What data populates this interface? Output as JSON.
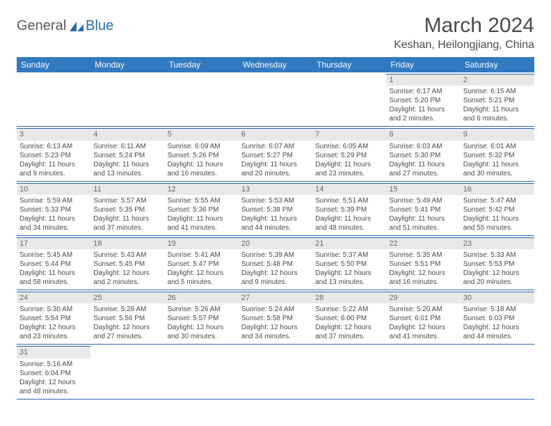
{
  "logo": {
    "general": "General",
    "blue": "Blue"
  },
  "title": "March 2024",
  "location": "Keshan, Heilongjiang, China",
  "headers": [
    "Sunday",
    "Monday",
    "Tuesday",
    "Wednesday",
    "Thursday",
    "Friday",
    "Saturday"
  ],
  "colors": {
    "header_bg": "#317ac1",
    "header_text": "#ffffff",
    "daynum_bg": "#e8e8e8",
    "daynum_text": "#6a6a6a",
    "border": "#2968b0",
    "body_text": "#4a4a4a",
    "logo_accent": "#2968b0",
    "logo_grey": "#5a5a5a"
  },
  "weeks": [
    [
      null,
      null,
      null,
      null,
      null,
      {
        "n": "1",
        "sr": "Sunrise: 6:17 AM",
        "ss": "Sunset: 5:20 PM",
        "dl1": "Daylight: 11 hours",
        "dl2": "and 2 minutes."
      },
      {
        "n": "2",
        "sr": "Sunrise: 6:15 AM",
        "ss": "Sunset: 5:21 PM",
        "dl1": "Daylight: 11 hours",
        "dl2": "and 6 minutes."
      }
    ],
    [
      {
        "n": "3",
        "sr": "Sunrise: 6:13 AM",
        "ss": "Sunset: 5:23 PM",
        "dl1": "Daylight: 11 hours",
        "dl2": "and 9 minutes."
      },
      {
        "n": "4",
        "sr": "Sunrise: 6:11 AM",
        "ss": "Sunset: 5:24 PM",
        "dl1": "Daylight: 11 hours",
        "dl2": "and 13 minutes."
      },
      {
        "n": "5",
        "sr": "Sunrise: 6:09 AM",
        "ss": "Sunset: 5:26 PM",
        "dl1": "Daylight: 11 hours",
        "dl2": "and 16 minutes."
      },
      {
        "n": "6",
        "sr": "Sunrise: 6:07 AM",
        "ss": "Sunset: 5:27 PM",
        "dl1": "Daylight: 11 hours",
        "dl2": "and 20 minutes."
      },
      {
        "n": "7",
        "sr": "Sunrise: 6:05 AM",
        "ss": "Sunset: 5:29 PM",
        "dl1": "Daylight: 11 hours",
        "dl2": "and 23 minutes."
      },
      {
        "n": "8",
        "sr": "Sunrise: 6:03 AM",
        "ss": "Sunset: 5:30 PM",
        "dl1": "Daylight: 11 hours",
        "dl2": "and 27 minutes."
      },
      {
        "n": "9",
        "sr": "Sunrise: 6:01 AM",
        "ss": "Sunset: 5:32 PM",
        "dl1": "Daylight: 11 hours",
        "dl2": "and 30 minutes."
      }
    ],
    [
      {
        "n": "10",
        "sr": "Sunrise: 5:59 AM",
        "ss": "Sunset: 5:33 PM",
        "dl1": "Daylight: 11 hours",
        "dl2": "and 34 minutes."
      },
      {
        "n": "11",
        "sr": "Sunrise: 5:57 AM",
        "ss": "Sunset: 5:35 PM",
        "dl1": "Daylight: 11 hours",
        "dl2": "and 37 minutes."
      },
      {
        "n": "12",
        "sr": "Sunrise: 5:55 AM",
        "ss": "Sunset: 5:36 PM",
        "dl1": "Daylight: 11 hours",
        "dl2": "and 41 minutes."
      },
      {
        "n": "13",
        "sr": "Sunrise: 5:53 AM",
        "ss": "Sunset: 5:38 PM",
        "dl1": "Daylight: 11 hours",
        "dl2": "and 44 minutes."
      },
      {
        "n": "14",
        "sr": "Sunrise: 5:51 AM",
        "ss": "Sunset: 5:39 PM",
        "dl1": "Daylight: 11 hours",
        "dl2": "and 48 minutes."
      },
      {
        "n": "15",
        "sr": "Sunrise: 5:49 AM",
        "ss": "Sunset: 5:41 PM",
        "dl1": "Daylight: 11 hours",
        "dl2": "and 51 minutes."
      },
      {
        "n": "16",
        "sr": "Sunrise: 5:47 AM",
        "ss": "Sunset: 5:42 PM",
        "dl1": "Daylight: 11 hours",
        "dl2": "and 55 minutes."
      }
    ],
    [
      {
        "n": "17",
        "sr": "Sunrise: 5:45 AM",
        "ss": "Sunset: 5:44 PM",
        "dl1": "Daylight: 11 hours",
        "dl2": "and 58 minutes."
      },
      {
        "n": "18",
        "sr": "Sunrise: 5:43 AM",
        "ss": "Sunset: 5:45 PM",
        "dl1": "Daylight: 12 hours",
        "dl2": "and 2 minutes."
      },
      {
        "n": "19",
        "sr": "Sunrise: 5:41 AM",
        "ss": "Sunset: 5:47 PM",
        "dl1": "Daylight: 12 hours",
        "dl2": "and 5 minutes."
      },
      {
        "n": "20",
        "sr": "Sunrise: 5:39 AM",
        "ss": "Sunset: 5:48 PM",
        "dl1": "Daylight: 12 hours",
        "dl2": "and 9 minutes."
      },
      {
        "n": "21",
        "sr": "Sunrise: 5:37 AM",
        "ss": "Sunset: 5:50 PM",
        "dl1": "Daylight: 12 hours",
        "dl2": "and 13 minutes."
      },
      {
        "n": "22",
        "sr": "Sunrise: 5:35 AM",
        "ss": "Sunset: 5:51 PM",
        "dl1": "Daylight: 12 hours",
        "dl2": "and 16 minutes."
      },
      {
        "n": "23",
        "sr": "Sunrise: 5:33 AM",
        "ss": "Sunset: 5:53 PM",
        "dl1": "Daylight: 12 hours",
        "dl2": "and 20 minutes."
      }
    ],
    [
      {
        "n": "24",
        "sr": "Sunrise: 5:30 AM",
        "ss": "Sunset: 5:54 PM",
        "dl1": "Daylight: 12 hours",
        "dl2": "and 23 minutes."
      },
      {
        "n": "25",
        "sr": "Sunrise: 5:28 AM",
        "ss": "Sunset: 5:56 PM",
        "dl1": "Daylight: 12 hours",
        "dl2": "and 27 minutes."
      },
      {
        "n": "26",
        "sr": "Sunrise: 5:26 AM",
        "ss": "Sunset: 5:57 PM",
        "dl1": "Daylight: 12 hours",
        "dl2": "and 30 minutes."
      },
      {
        "n": "27",
        "sr": "Sunrise: 5:24 AM",
        "ss": "Sunset: 5:58 PM",
        "dl1": "Daylight: 12 hours",
        "dl2": "and 34 minutes."
      },
      {
        "n": "28",
        "sr": "Sunrise: 5:22 AM",
        "ss": "Sunset: 6:00 PM",
        "dl1": "Daylight: 12 hours",
        "dl2": "and 37 minutes."
      },
      {
        "n": "29",
        "sr": "Sunrise: 5:20 AM",
        "ss": "Sunset: 6:01 PM",
        "dl1": "Daylight: 12 hours",
        "dl2": "and 41 minutes."
      },
      {
        "n": "30",
        "sr": "Sunrise: 5:18 AM",
        "ss": "Sunset: 6:03 PM",
        "dl1": "Daylight: 12 hours",
        "dl2": "and 44 minutes."
      }
    ],
    [
      {
        "n": "31",
        "sr": "Sunrise: 5:16 AM",
        "ss": "Sunset: 6:04 PM",
        "dl1": "Daylight: 12 hours",
        "dl2": "and 48 minutes."
      },
      null,
      null,
      null,
      null,
      null,
      null
    ]
  ]
}
